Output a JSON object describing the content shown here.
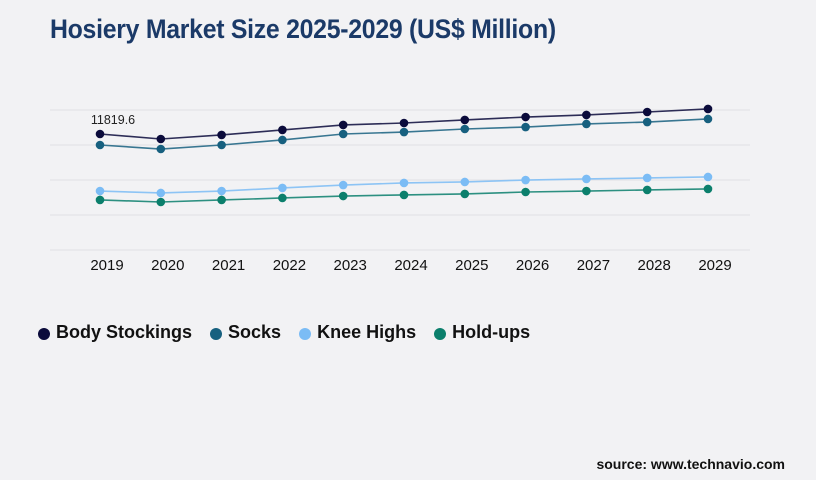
{
  "title": "Hosiery Market Size 2025-2029 (US$ Million)",
  "source": "source: www.technavio.com",
  "chart_data": {
    "type": "line",
    "title": "Hosiery Market Size 2025-2029 (US$ Million)",
    "xlabel": "",
    "ylabel": "",
    "x": [
      "2019",
      "2020",
      "2021",
      "2022",
      "2023",
      "2024",
      "2025",
      "2026",
      "2027",
      "2028",
      "2029"
    ],
    "ylim": [
      0,
      14265
    ],
    "grid": true,
    "legend_position": "bottom-left",
    "annotations": [
      {
        "series": "Body Stockings",
        "x": "2019",
        "text": "11819.6"
      }
    ],
    "series": [
      {
        "name": "Body Stockings",
        "color": "#0b0b3b",
        "values": [
          11819.6,
          11310,
          11720,
          12230,
          12740,
          12940,
          13250,
          13550,
          13760,
          14060,
          14370
        ]
      },
      {
        "name": "Socks",
        "color": "#17607f",
        "values": [
          10700,
          10290,
          10700,
          11210,
          11820,
          12020,
          12330,
          12530,
          12840,
          13040,
          13350
        ]
      },
      {
        "name": "Knee Highs",
        "color": "#7bbcf5",
        "values": [
          6010,
          5810,
          6010,
          6320,
          6620,
          6830,
          6930,
          7130,
          7240,
          7340,
          7440
        ]
      },
      {
        "name": "Hold-ups",
        "color": "#0b7f6c",
        "values": [
          5100,
          4890,
          5100,
          5300,
          5500,
          5610,
          5710,
          5910,
          6010,
          6120,
          6220
        ]
      }
    ]
  }
}
